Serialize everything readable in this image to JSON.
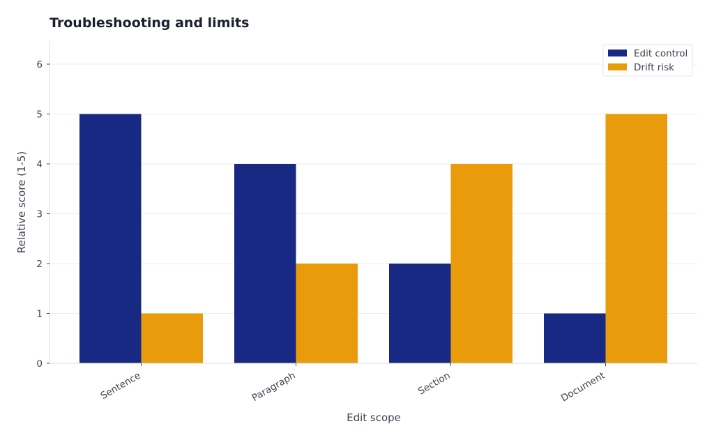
{
  "chart_data": {
    "type": "bar",
    "title": "Troubleshooting and limits",
    "xlabel": "Edit scope",
    "ylabel": "Relative score (1-5)",
    "categories": [
      "Sentence",
      "Paragraph",
      "Section",
      "Document"
    ],
    "series": [
      {
        "name": "Edit control",
        "values": [
          5,
          4,
          2,
          1
        ],
        "color": "#172983"
      },
      {
        "name": "Drift risk",
        "values": [
          1,
          2,
          4,
          5
        ],
        "color": "#ea9b0b"
      }
    ],
    "ylim": [
      0,
      6.5
    ],
    "yticks": [
      0,
      1,
      2,
      3,
      4,
      5,
      6
    ],
    "grid": true,
    "legend_position": "top-right"
  }
}
